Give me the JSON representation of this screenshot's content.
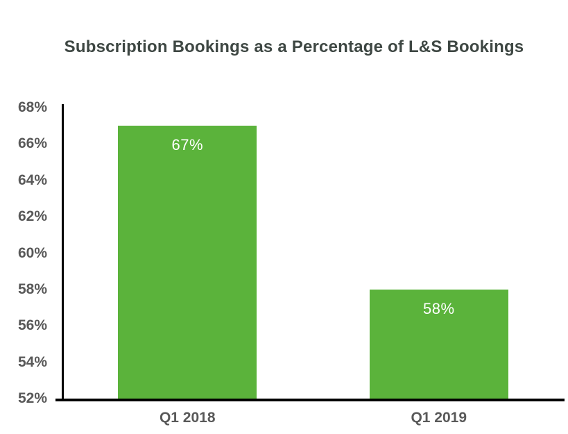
{
  "colors": {
    "bar_fill": "#5bb33b",
    "title_text": "#3e4743",
    "axis_label_text": "#595959",
    "axis_line": "#000000",
    "data_label_text": "#ffffff",
    "background": "#ffffff"
  },
  "chart_data": {
    "type": "bar",
    "title": "Subscription Bookings as a Percentage of L&S Bookings",
    "categories": [
      "Q1 2018",
      "Q1 2019"
    ],
    "values": [
      67,
      58
    ],
    "data_labels": [
      "67%",
      "58%"
    ],
    "xlabel": "",
    "ylabel": "",
    "ylim": [
      52,
      68
    ],
    "ytick_step": 2,
    "ytick_labels": [
      "52%",
      "54%",
      "56%",
      "58%",
      "60%",
      "62%",
      "64%",
      "66%",
      "68%"
    ],
    "grid": false,
    "legend": false,
    "data_labels_position": "inside-top",
    "bar_orientation": "vertical"
  }
}
